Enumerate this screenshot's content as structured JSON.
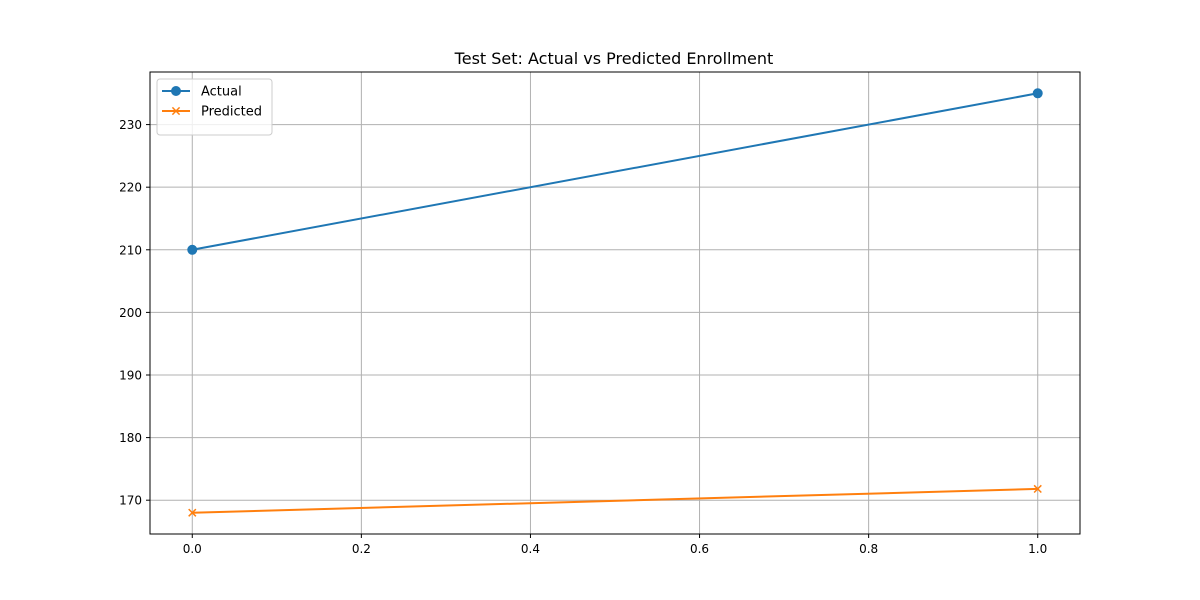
{
  "chart_data": {
    "type": "line",
    "title": "Test Set: Actual vs Predicted Enrollment",
    "xlabel": "",
    "ylabel": "",
    "x": [
      0,
      1
    ],
    "xlim": [
      -0.05,
      1.05
    ],
    "ylim": [
      164.6,
      238.4
    ],
    "xticks": [
      "0.0",
      "0.2",
      "0.4",
      "0.6",
      "0.8",
      "1.0"
    ],
    "yticks": [
      "170",
      "180",
      "190",
      "200",
      "210",
      "220",
      "230"
    ],
    "grid": true,
    "legend_position": "upper-left",
    "series": [
      {
        "name": "Actual",
        "values": [
          210,
          235
        ],
        "color": "#1f77b4",
        "marker": "circle"
      },
      {
        "name": "Predicted",
        "values": [
          168,
          171.8
        ],
        "color": "#ff7f0e",
        "marker": "x"
      }
    ]
  }
}
